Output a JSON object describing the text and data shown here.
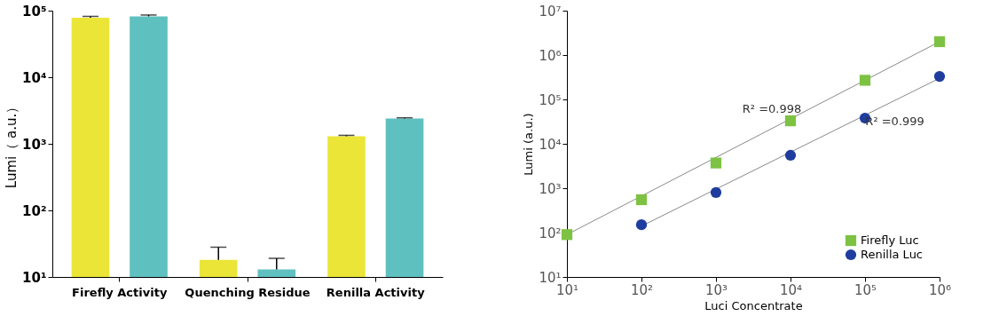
{
  "chart_data": [
    {
      "type": "bar",
      "ylabel": "Lumi（ a.u.）",
      "categories": [
        "Firefly Activity",
        "Quenching Residue",
        "Renilla Activity"
      ],
      "series": [
        {
          "color": "#ebe538",
          "values": [
            78000,
            18,
            1300
          ],
          "errors": [
            [
              78000,
              82000
            ],
            [
              18,
              28
            ],
            [
              1300,
              1340
            ]
          ]
        },
        {
          "color": "#5fc0c0",
          "values": [
            82000,
            13,
            2400
          ],
          "errors": [
            [
              82000,
              86000
            ],
            [
              13,
              19
            ],
            [
              2400,
              2460
            ]
          ]
        }
      ],
      "log": "y",
      "ylim": [
        10,
        100000
      ],
      "yticks": [
        {
          "value": 10,
          "label": "10¹"
        },
        {
          "value": 100,
          "label": "10²"
        },
        {
          "value": 1000,
          "label": "10³"
        },
        {
          "value": 10000,
          "label": "10⁴"
        },
        {
          "value": 100000,
          "label": "10⁵"
        }
      ],
      "grid": false
    },
    {
      "type": "scatter",
      "xlabel": "Luci Concentrate",
      "ylabel": "Lumi (a.u.)",
      "log": "xy",
      "grid": false,
      "legend": "bottom right",
      "xlim": [
        10,
        1000000
      ],
      "xticks": [
        {
          "value": 10,
          "label": "10¹"
        },
        {
          "value": 100,
          "label": "10²"
        },
        {
          "value": 1000,
          "label": "10³"
        },
        {
          "value": 10000,
          "label": "10⁴"
        },
        {
          "value": 100000,
          "label": "10⁵"
        },
        {
          "value": 1000000,
          "label": "10⁶"
        }
      ],
      "ylim": [
        10,
        10000000
      ],
      "yticks": [
        {
          "value": 10,
          "label": "10¹"
        },
        {
          "value": 100,
          "label": "10²"
        },
        {
          "value": 1000,
          "label": "10³"
        },
        {
          "value": 10000,
          "label": "10⁴"
        },
        {
          "value": 100000,
          "label": "10⁵"
        },
        {
          "value": 1000000,
          "label": "10⁶"
        },
        {
          "value": 10000000,
          "label": "10⁷"
        }
      ],
      "series": [
        {
          "type": "line",
          "color": "#8a8a8a",
          "x": [
            10,
            1000000
          ],
          "values": [
            90,
            2000000
          ]
        },
        {
          "type": "line",
          "color": "#8a8a8a",
          "x": [
            100,
            1000000
          ],
          "values": [
            140,
            300000
          ]
        },
        {
          "name": "Firefly Luc",
          "marker": "square",
          "color": "#7dc242",
          "x": [
            10,
            100,
            1000,
            10000,
            100000,
            1000000
          ],
          "values": [
            90,
            550,
            3700,
            33000,
            270000,
            2000000
          ]
        },
        {
          "name": "Renilla Luc",
          "marker": "circle",
          "color": "#1f3d9e",
          "x": [
            100,
            1000,
            10000,
            100000,
            1000000
          ],
          "values": [
            150,
            800,
            5500,
            38000,
            330000
          ]
        }
      ],
      "annotations": [
        "R² =0.998",
        "R² =0.999"
      ]
    }
  ]
}
